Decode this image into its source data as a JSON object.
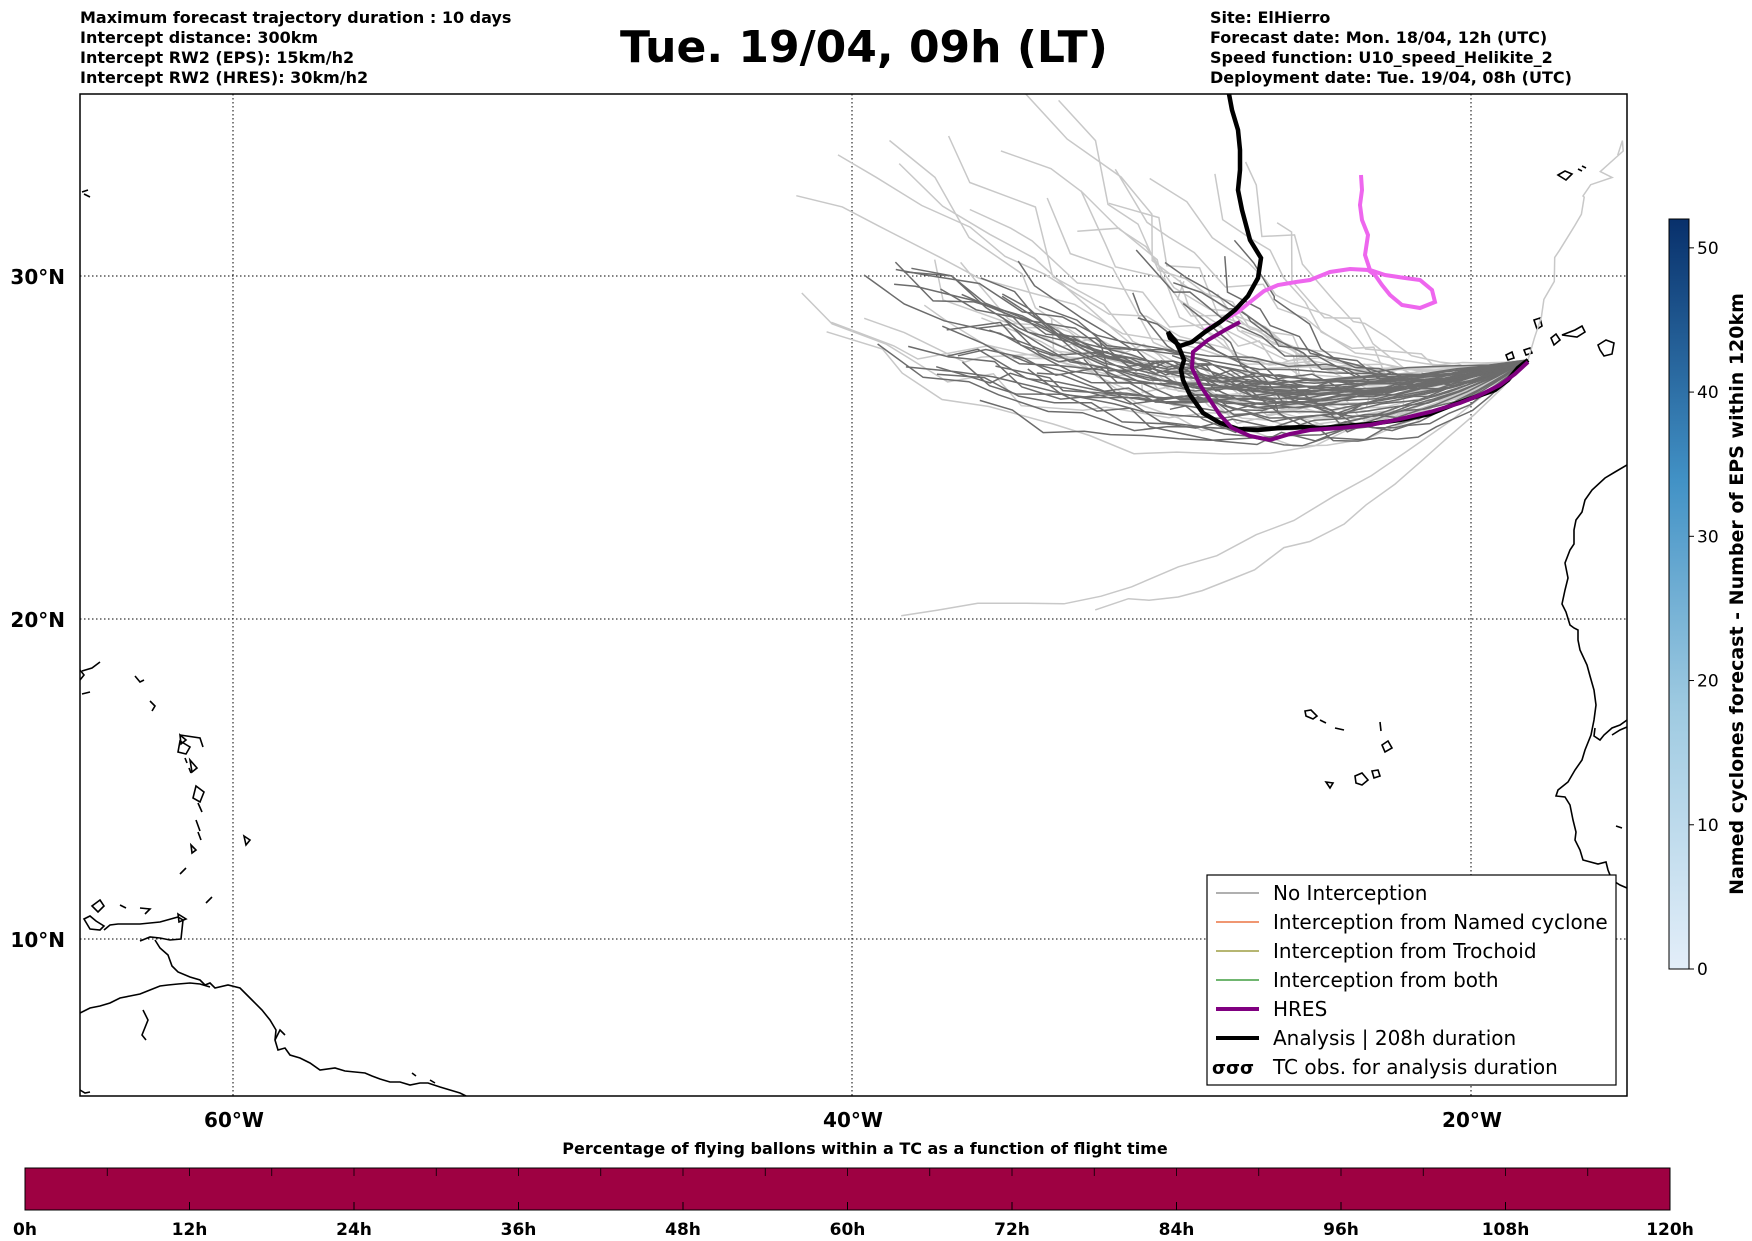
{
  "header": {
    "left": [
      "Maximum forecast trajectory duration : 10 days",
      "Intercept distance: 300km",
      "Intercept RW2 (EPS):  15km/h2",
      "Intercept RW2 (HRES): 30km/h2"
    ],
    "title": "Tue. 19/04, 09h (LT)",
    "right": [
      "Site: ElHierro",
      "Forecast date: Mon. 18/04, 12h (UTC)",
      "Speed function: U10_speed_Helikite_2",
      "Deployment date: Tue. 19/04, 08h (UTC)"
    ]
  },
  "map": {
    "lat_labels": [
      "30°N",
      "20°N",
      "10°N"
    ],
    "lon_labels": [
      "60°W",
      "40°W",
      "20°W"
    ],
    "lat_range": [
      5,
      34
    ],
    "lon_range": [
      -65,
      -15
    ]
  },
  "legend": [
    {
      "label": "No Interception",
      "color": "#808080"
    },
    {
      "label": "Interception from Named cyclone",
      "color": "#e8591f"
    },
    {
      "label": "Interception from Trochoid",
      "color": "#8a8a1e"
    },
    {
      "label": "Interception from both",
      "color": "#1a8a1a"
    },
    {
      "label": "HRES",
      "color": "#800080"
    },
    {
      "label": "Analysis | 208h duration",
      "color": "#000000"
    },
    {
      "label": "TC obs. for analysis duration",
      "color": "#000000"
    }
  ],
  "colorbar_right": {
    "label": "Named cyclones forecast - Number of EPS within 120km",
    "ticks": [
      "0",
      "10",
      "20",
      "30",
      "40",
      "50"
    ],
    "color_low": "#e3eef9",
    "color_high": "#08306b"
  },
  "colorbar_bottom": {
    "title": "Percentage of flying ballons within a TC as a function of flight time",
    "ticks": [
      "0h",
      "12h",
      "24h",
      "36h",
      "48h",
      "60h",
      "72h",
      "84h",
      "96h",
      "108h",
      "120h"
    ],
    "color": "#9e0142"
  },
  "colors": {
    "hres": "#800080",
    "analysis": "#000000",
    "pink_track": "#ee66ee",
    "eps_dark": "#666666",
    "eps_light": "#c8c8c8"
  }
}
